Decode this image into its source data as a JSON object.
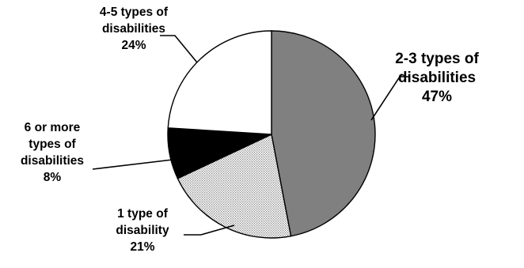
{
  "chart_data": {
    "type": "pie",
    "title": "",
    "start": "top",
    "direction": "clockwise",
    "slices": [
      {
        "category": "2-3 types of disabilities",
        "value": 47,
        "label_lines": [
          "2-3 types of",
          "disabilities",
          "47%"
        ],
        "fill": "#808080"
      },
      {
        "category": "1 type of disability",
        "value": 21,
        "label_lines": [
          "1 type of",
          "disability",
          "21%"
        ],
        "fill": "url(#dots)"
      },
      {
        "category": "6 or more types of disabilities",
        "value": 8,
        "label_lines": [
          "6 or more",
          "types of",
          "disabilities",
          "8%"
        ],
        "fill": "#000000"
      },
      {
        "category": "4-5 types of disabilities",
        "value": 24,
        "label_lines": [
          "4-5 types of",
          "disabilities",
          "24%"
        ],
        "fill": "#ffffff"
      }
    ]
  }
}
